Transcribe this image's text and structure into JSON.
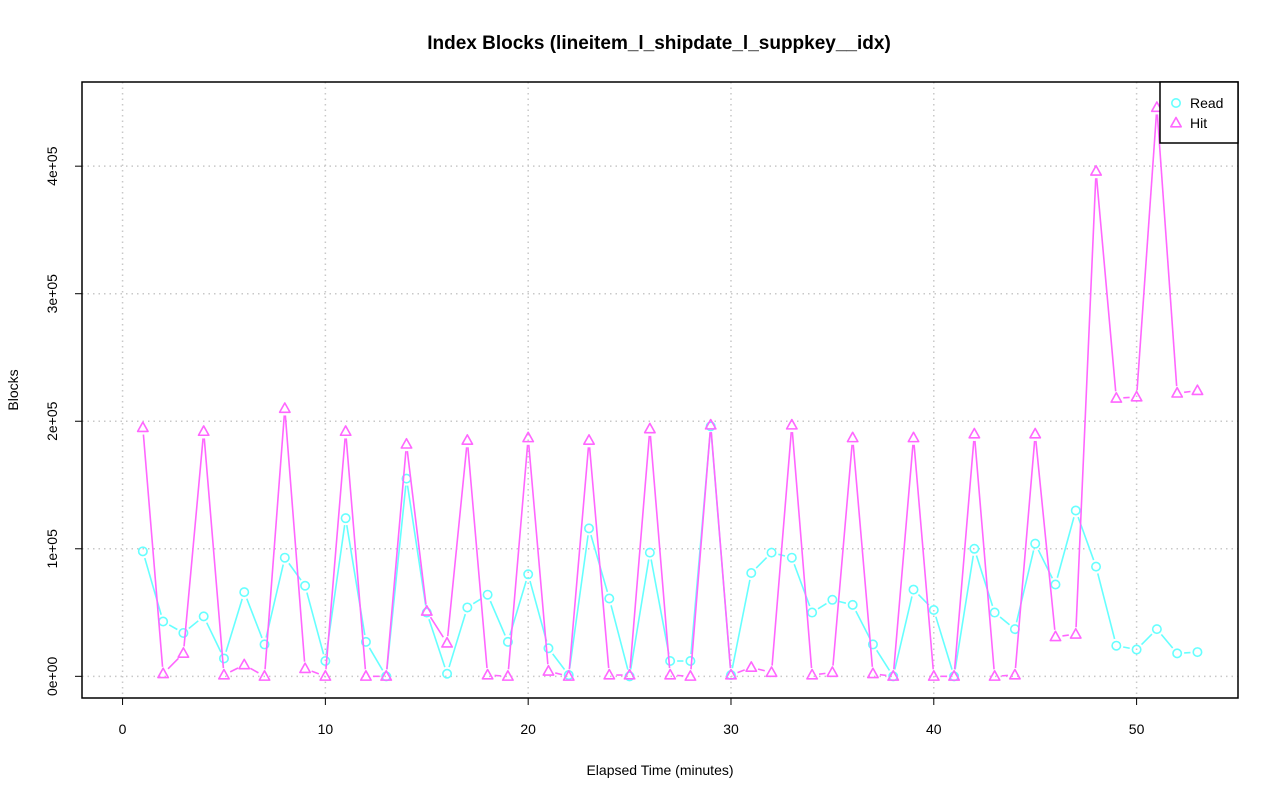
{
  "chart_data": {
    "type": "line",
    "title": "Index Blocks (lineitem_l_shipdate_l_suppkey__idx)",
    "xlabel": "Elapsed Time (minutes)",
    "ylabel": "Blocks",
    "xlim": [
      -2,
      55
    ],
    "ylim": [
      -17000,
      466000
    ],
    "xticks": [
      0,
      10,
      20,
      30,
      40,
      50
    ],
    "xtick_labels": [
      "0",
      "10",
      "20",
      "30",
      "40",
      "50"
    ],
    "yticks": [
      0,
      100000,
      200000,
      300000,
      400000
    ],
    "ytick_labels": [
      "0e+00",
      "1e+05",
      "2e+05",
      "3e+05",
      "4e+05"
    ],
    "grid": true,
    "legend_position": "top-right",
    "x": [
      1,
      2,
      3,
      4,
      5,
      6,
      7,
      8,
      9,
      10,
      11,
      12,
      13,
      14,
      15,
      16,
      17,
      18,
      19,
      20,
      21,
      22,
      23,
      24,
      25,
      26,
      27,
      28,
      29,
      30,
      31,
      32,
      33,
      34,
      35,
      36,
      37,
      38,
      39,
      40,
      41,
      42,
      43,
      44,
      45,
      46,
      47,
      48,
      49,
      50,
      51,
      52,
      53
    ],
    "series": [
      {
        "name": "Read",
        "color": "#66ffff",
        "marker": "circle",
        "values": [
          98000,
          43000,
          34000,
          47000,
          14000,
          66000,
          25000,
          93000,
          71000,
          12000,
          124000,
          27000,
          0,
          155000,
          50000,
          2000,
          54000,
          64000,
          27000,
          80000,
          22000,
          1000,
          116000,
          61000,
          0,
          97000,
          12000,
          12000,
          196000,
          1000,
          81000,
          97000,
          93000,
          50000,
          60000,
          56000,
          25000,
          0,
          68000,
          52000,
          0,
          100000,
          50000,
          37000,
          104000,
          72000,
          130000,
          86000,
          24000,
          21000,
          37000,
          18000,
          19000
        ]
      },
      {
        "name": "Hit",
        "color": "#ff66ff",
        "marker": "triangle",
        "values": [
          195000,
          2000,
          18000,
          192000,
          1000,
          9000,
          0,
          210000,
          6000,
          0,
          192000,
          0,
          0,
          182000,
          51000,
          26000,
          185000,
          1000,
          0,
          187000,
          4000,
          0,
          185000,
          1000,
          1000,
          194000,
          1000,
          0,
          197000,
          1000,
          7000,
          3000,
          197000,
          1000,
          3000,
          187000,
          2000,
          0,
          187000,
          0,
          0,
          190000,
          0,
          1000,
          190000,
          31000,
          33000,
          396000,
          218000,
          219000,
          446000,
          222000,
          224000
        ]
      }
    ]
  }
}
